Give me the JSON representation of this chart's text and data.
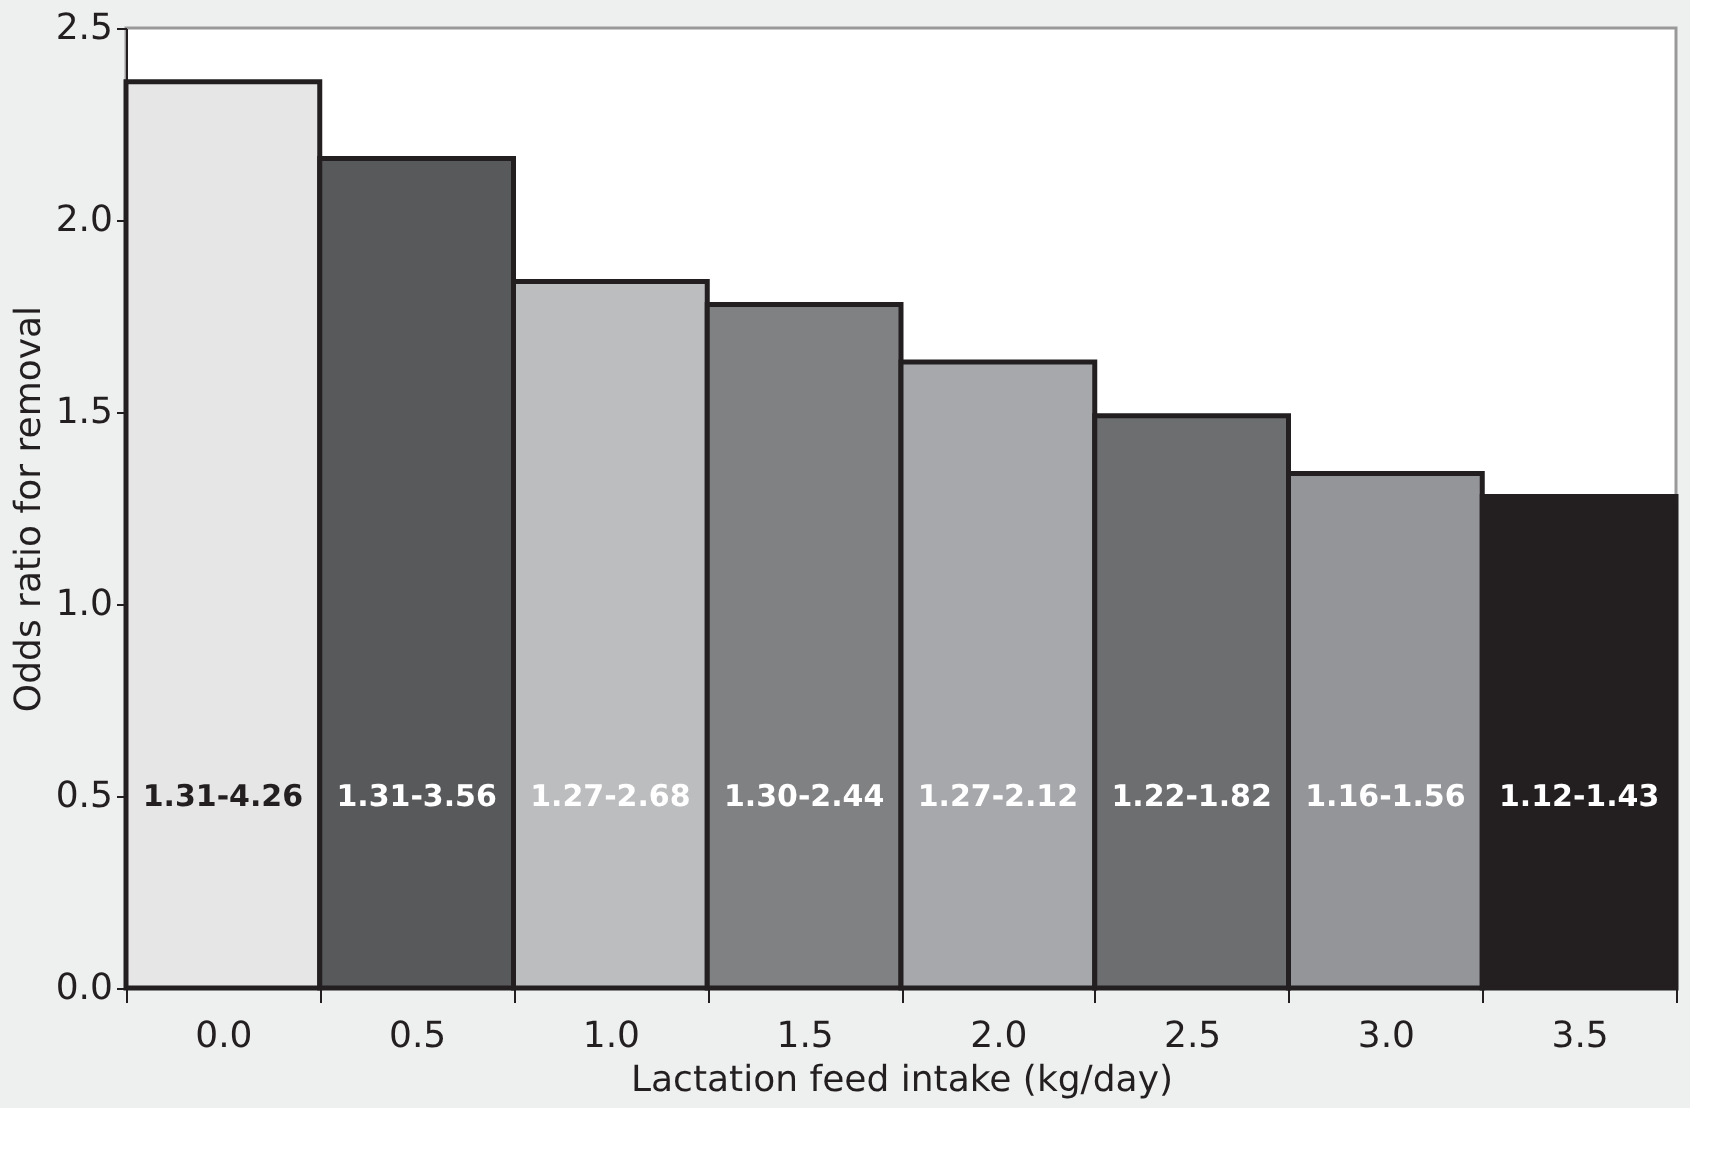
{
  "chart_data": {
    "type": "bar",
    "xlabel": "Lactation feed intake (kg/day)",
    "ylabel": "Odds ratio for removal",
    "categories": [
      "0.0",
      "0.5",
      "1.0",
      "1.5",
      "2.0",
      "2.5",
      "3.0",
      "3.5"
    ],
    "values": [
      2.36,
      2.16,
      1.84,
      1.78,
      1.63,
      1.49,
      1.34,
      1.28
    ],
    "colors": [
      "#e6e6e6",
      "#58595b",
      "#bcbdbf",
      "#808183",
      "#a7a8ab",
      "#6d6e70",
      "#939598",
      "#231f20"
    ],
    "value_labels": [
      "1.31-4.26",
      "1.31-3.56",
      "1.27-2.68",
      "1.30-2.44",
      "1.27-2.12",
      "1.22-1.82",
      "1.16-1.56",
      "1.12-1.43"
    ],
    "ylim": [
      0,
      2.5
    ],
    "yticks": [
      {
        "value": 0,
        "label": "0.0"
      },
      0.5,
      {
        "value": 1,
        "label": "1.0"
      },
      1.5,
      {
        "value": 2,
        "label": "2.0"
      },
      2.5
    ],
    "grid": false,
    "legend": false
  }
}
